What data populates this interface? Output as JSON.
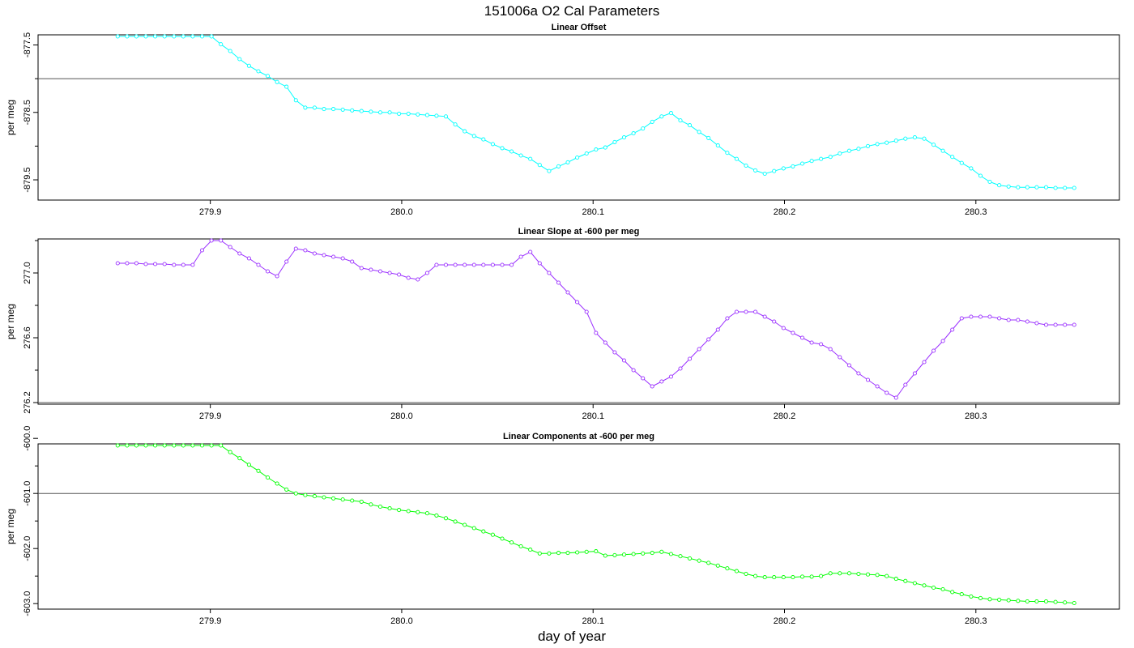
{
  "figure": {
    "title": "151006a   O2 Cal Parameters",
    "xlabel": "day of year"
  },
  "chart_data": [
    {
      "type": "line",
      "title": "Linear Offset",
      "xlabel": "",
      "ylabel": "per meg",
      "color": "#00ffff",
      "xlim": [
        279.81,
        280.375
      ],
      "ylim": [
        -879.8,
        -877.35
      ],
      "x_ticks": [
        279.9,
        280.0,
        280.1,
        280.2,
        280.3
      ],
      "x_tick_labels": [
        "279.9",
        "280.0",
        "280.1",
        "280.2",
        "280.3"
      ],
      "y_ticks": [
        -877.5,
        -878.5,
        -879.5
      ],
      "y_tick_labels": [
        "-877.5",
        "-878.5",
        "-879.5"
      ],
      "y_minor_ticks": [
        -878.0,
        -879.0
      ],
      "reference_line": -878.0,
      "x": [
        279.8516,
        279.8565,
        279.8614,
        279.8663,
        279.8712,
        279.8761,
        279.881,
        279.8859,
        279.8908,
        279.8957,
        279.9006,
        279.9055,
        279.9104,
        279.9153,
        279.9202,
        279.9251,
        279.93,
        279.9349,
        279.9398,
        279.9447,
        279.9496,
        279.9545,
        279.9594,
        279.9643,
        279.9692,
        279.9741,
        279.979,
        279.9839,
        279.9888,
        279.9937,
        279.9986,
        280.0035,
        280.0084,
        280.0133,
        280.0182,
        280.0231,
        280.028,
        280.0329,
        280.0378,
        280.0427,
        280.0476,
        280.0525,
        280.0574,
        280.0623,
        280.0672,
        280.0721,
        280.077,
        280.0819,
        280.0868,
        280.0917,
        280.0966,
        280.1015,
        280.1064,
        280.1113,
        280.1162,
        280.1211,
        280.126,
        280.1309,
        280.1358,
        280.1407,
        280.1456,
        280.1505,
        280.1554,
        280.1603,
        280.1652,
        280.1701,
        280.175,
        280.1799,
        280.1848,
        280.1897,
        280.1946,
        280.1995,
        280.2044,
        280.2093,
        280.2142,
        280.2191,
        280.224,
        280.2289,
        280.2338,
        280.2387,
        280.2436,
        280.2485,
        280.2534,
        280.2583,
        280.2632,
        280.2681,
        280.273,
        280.2779,
        280.2828,
        280.2877,
        280.2926,
        280.2975,
        280.3024,
        280.3073,
        280.3122,
        280.3171,
        280.322,
        280.3269,
        280.3318,
        280.3367,
        280.3416,
        280.3465,
        280.3514
      ],
      "values": [
        -877.1,
        -877.1,
        -877.1,
        -877.1,
        -877.1,
        -877.1,
        -877.1,
        -877.1,
        -877.1,
        -877.1,
        -877.28,
        -877.49,
        -877.59,
        -877.71,
        -877.81,
        -877.89,
        -877.96,
        -878.05,
        -878.12,
        -878.32,
        -878.43,
        -878.43,
        -878.45,
        -878.45,
        -878.46,
        -878.47,
        -878.48,
        -878.49,
        -878.5,
        -878.5,
        -878.52,
        -878.52,
        -878.53,
        -878.54,
        -878.55,
        -878.56,
        -878.68,
        -878.78,
        -878.85,
        -878.9,
        -878.97,
        -879.03,
        -879.08,
        -879.14,
        -879.19,
        -879.28,
        -879.37,
        -879.3,
        -879.24,
        -879.17,
        -879.11,
        -879.05,
        -879.02,
        -878.94,
        -878.87,
        -878.81,
        -878.74,
        -878.64,
        -878.56,
        -878.51,
        -878.62,
        -878.69,
        -878.79,
        -878.88,
        -878.99,
        -879.1,
        -879.19,
        -879.29,
        -879.36,
        -879.41,
        -879.37,
        -879.33,
        -879.3,
        -879.26,
        -879.22,
        -879.19,
        -879.16,
        -879.11,
        -879.07,
        -879.04,
        -879.0,
        -878.97,
        -878.95,
        -878.92,
        -878.89,
        -878.87,
        -878.89,
        -878.98,
        -879.07,
        -879.16,
        -879.25,
        -879.33,
        -879.44,
        -879.53,
        -879.58,
        -879.6,
        -879.61,
        -879.61,
        -879.61,
        -879.61,
        -879.62,
        -879.62,
        -879.62
      ]
    },
    {
      "type": "line",
      "title": "Linear Slope at -600 per meg",
      "xlabel": "",
      "ylabel": "per meg",
      "color": "#9b30ff",
      "xlim": [
        279.81,
        280.375
      ],
      "ylim": [
        276.19,
        277.21
      ],
      "x_ticks": [
        279.9,
        280.0,
        280.1,
        280.2,
        280.3
      ],
      "x_tick_labels": [
        "279.9",
        "280.0",
        "280.1",
        "280.2",
        "280.3"
      ],
      "y_ticks": [
        276.2,
        276.6,
        277.0
      ],
      "y_tick_labels": [
        "276.2",
        "276.6",
        "277.0"
      ],
      "y_minor_ticks": [
        276.4,
        276.8,
        277.2
      ],
      "reference_line": 276.2,
      "x": [
        279.8516,
        279.8565,
        279.8614,
        279.8663,
        279.8712,
        279.8761,
        279.881,
        279.8859,
        279.8908,
        279.8957,
        279.9006,
        279.9055,
        279.9104,
        279.9153,
        279.9202,
        279.9251,
        279.93,
        279.9349,
        279.9398,
        279.9447,
        279.9496,
        279.9545,
        279.9594,
        279.9643,
        279.9692,
        279.9741,
        279.979,
        279.9839,
        279.9888,
        279.9937,
        279.9986,
        280.0035,
        280.0084,
        280.0133,
        280.0182,
        280.0231,
        280.028,
        280.0329,
        280.0378,
        280.0427,
        280.0476,
        280.0525,
        280.0574,
        280.0623,
        280.0672,
        280.0721,
        280.077,
        280.0819,
        280.0868,
        280.0917,
        280.0966,
        280.1015,
        280.1064,
        280.1113,
        280.1162,
        280.1211,
        280.126,
        280.1309,
        280.1358,
        280.1407,
        280.1456,
        280.1505,
        280.1554,
        280.1603,
        280.1652,
        280.1701,
        280.175,
        280.1799,
        280.1848,
        280.1897,
        280.1946,
        280.1995,
        280.2044,
        280.2093,
        280.2142,
        280.2191,
        280.224,
        280.2289,
        280.2338,
        280.2387,
        280.2436,
        280.2485,
        280.2534,
        280.2583,
        280.2632,
        280.2681,
        280.273,
        280.2779,
        280.2828,
        280.2877,
        280.2926,
        280.2975,
        280.3024,
        280.3073,
        280.3122,
        280.3171,
        280.322,
        280.3269,
        280.3318,
        280.3367,
        280.3416,
        280.3465,
        280.3514
      ],
      "values": [
        277.06,
        277.06,
        277.06,
        277.055,
        277.055,
        277.055,
        277.05,
        277.05,
        277.05,
        277.14,
        277.24,
        277.2,
        277.16,
        277.12,
        277.09,
        277.05,
        277.01,
        276.98,
        277.07,
        277.15,
        277.14,
        277.12,
        277.11,
        277.1,
        277.09,
        277.07,
        277.03,
        277.02,
        277.01,
        277.0,
        276.99,
        276.97,
        276.96,
        277.0,
        277.05,
        277.05,
        277.05,
        277.05,
        277.05,
        277.05,
        277.05,
        277.05,
        277.05,
        277.1,
        277.13,
        277.06,
        277.0,
        276.94,
        276.88,
        276.82,
        276.76,
        276.63,
        276.57,
        276.51,
        276.46,
        276.4,
        276.35,
        276.3,
        276.33,
        276.36,
        276.41,
        276.47,
        276.53,
        276.59,
        276.65,
        276.72,
        276.76,
        276.76,
        276.76,
        276.73,
        276.7,
        276.66,
        276.63,
        276.6,
        276.57,
        276.56,
        276.53,
        276.48,
        276.43,
        276.38,
        276.34,
        276.3,
        276.26,
        276.23,
        276.31,
        276.38,
        276.45,
        276.52,
        276.58,
        276.65,
        276.72,
        276.73,
        276.73,
        276.73,
        276.72,
        276.71,
        276.71,
        276.7,
        276.69,
        276.68,
        276.68,
        276.68,
        276.68
      ]
    },
    {
      "type": "line",
      "title": "Linear Components at -600 per meg",
      "xlabel": "day of year",
      "ylabel": "per meg",
      "color": "#00ff00",
      "xlim": [
        279.81,
        280.375
      ],
      "ylim": [
        -603.1,
        -600.1
      ],
      "x_ticks": [
        279.9,
        280.0,
        280.1,
        280.2,
        280.3
      ],
      "x_tick_labels": [
        "279.9",
        "280.0",
        "280.1",
        "280.2",
        "280.3"
      ],
      "y_ticks": [
        -600.0,
        -601.0,
        -602.0,
        -603.0
      ],
      "y_tick_labels": [
        "-600.0",
        "-601.0",
        "-602.0",
        "-603.0"
      ],
      "y_minor_ticks": [
        -600.5,
        -601.5,
        -602.5
      ],
      "reference_line": -601.0,
      "x": [
        279.8516,
        279.8565,
        279.8614,
        279.8663,
        279.8712,
        279.8761,
        279.881,
        279.8859,
        279.8908,
        279.8957,
        279.9006,
        279.9055,
        279.9104,
        279.9153,
        279.9202,
        279.9251,
        279.93,
        279.9349,
        279.9398,
        279.9447,
        279.9496,
        279.9545,
        279.9594,
        279.9643,
        279.9692,
        279.9741,
        279.979,
        279.9839,
        279.9888,
        279.9937,
        279.9986,
        280.0035,
        280.0084,
        280.0133,
        280.0182,
        280.0231,
        280.028,
        280.0329,
        280.0378,
        280.0427,
        280.0476,
        280.0525,
        280.0574,
        280.0623,
        280.0672,
        280.0721,
        280.077,
        280.0819,
        280.0868,
        280.0917,
        280.0966,
        280.1015,
        280.1064,
        280.1113,
        280.1162,
        280.1211,
        280.126,
        280.1309,
        280.1358,
        280.1407,
        280.1456,
        280.1505,
        280.1554,
        280.1603,
        280.1652,
        280.1701,
        280.175,
        280.1799,
        280.1848,
        280.1897,
        280.1946,
        280.1995,
        280.2044,
        280.2093,
        280.2142,
        280.2191,
        280.224,
        280.2289,
        280.2338,
        280.2387,
        280.2436,
        280.2485,
        280.2534,
        280.2583,
        280.2632,
        280.2681,
        280.273,
        280.2779,
        280.2828,
        280.2877,
        280.2926,
        280.2975,
        280.3024,
        280.3073,
        280.3122,
        280.3171,
        280.322,
        280.3269,
        280.3318,
        280.3367,
        280.3416,
        280.3465,
        280.3514
      ],
      "values": [
        -599.85,
        -599.85,
        -599.85,
        -599.85,
        -599.86,
        -599.86,
        -599.86,
        -599.86,
        -599.86,
        -599.92,
        -600.02,
        -600.13,
        -600.25,
        -600.36,
        -600.48,
        -600.59,
        -600.71,
        -600.82,
        -600.93,
        -601.0,
        -601.03,
        -601.05,
        -601.07,
        -601.09,
        -601.11,
        -601.13,
        -601.15,
        -601.2,
        -601.24,
        -601.27,
        -601.3,
        -601.32,
        -601.34,
        -601.36,
        -601.4,
        -601.45,
        -601.51,
        -601.57,
        -601.63,
        -601.69,
        -601.75,
        -601.82,
        -601.89,
        -601.96,
        -602.02,
        -602.09,
        -602.09,
        -602.08,
        -602.08,
        -602.07,
        -602.06,
        -602.05,
        -602.13,
        -602.12,
        -602.11,
        -602.1,
        -602.09,
        -602.08,
        -602.06,
        -602.1,
        -602.14,
        -602.18,
        -602.22,
        -602.26,
        -602.31,
        -602.36,
        -602.41,
        -602.46,
        -602.5,
        -602.52,
        -602.52,
        -602.52,
        -602.52,
        -602.51,
        -602.51,
        -602.5,
        -602.45,
        -602.45,
        -602.45,
        -602.46,
        -602.47,
        -602.48,
        -602.5,
        -602.55,
        -602.59,
        -602.63,
        -602.67,
        -602.71,
        -602.74,
        -602.79,
        -602.83,
        -602.87,
        -602.9,
        -602.92,
        -602.93,
        -602.94,
        -602.95,
        -602.96,
        -602.96,
        -602.96,
        -602.97,
        -602.98,
        -602.99
      ]
    }
  ]
}
